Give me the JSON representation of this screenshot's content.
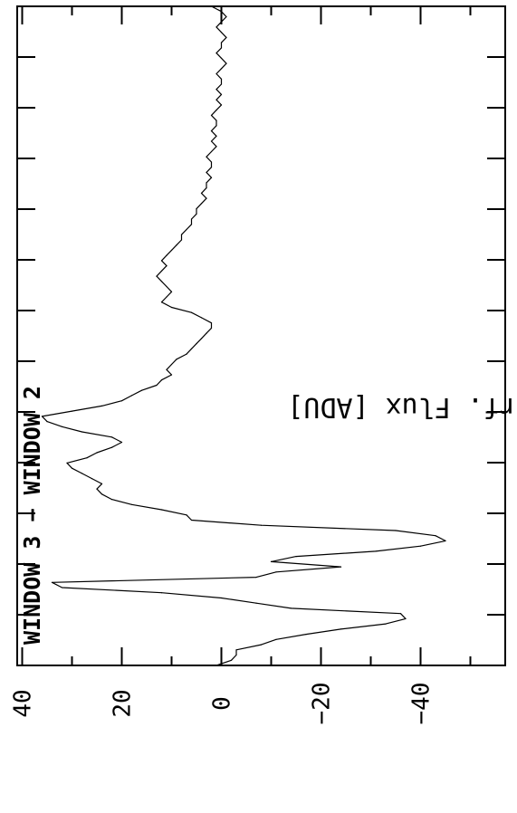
{
  "chart_data": {
    "type": "line",
    "orientation": "rotated-90-ccw",
    "title": "",
    "xlabel": "",
    "ylabel": "Mean Interf. Flux [ADU]",
    "ylim": [
      -57,
      41
    ],
    "yticks": [
      40,
      20,
      0,
      -20,
      -40
    ],
    "ytick_labels": [
      "40",
      "20",
      "0",
      "−20",
      "−40"
    ],
    "xlim": [
      0,
      127
    ],
    "xtick_count": 13,
    "grid": false,
    "annotation": "WINDOW 3 − WINDOW 2",
    "series": [
      {
        "x": [
          0,
          1,
          2,
          3,
          4,
          5,
          6,
          7,
          8,
          9,
          10,
          11,
          12,
          13,
          14,
          15,
          16,
          17,
          18,
          19,
          20,
          21,
          22,
          23,
          24,
          25,
          26,
          27,
          28,
          29,
          30,
          31,
          32,
          33,
          34,
          35,
          36,
          37,
          38,
          39,
          40,
          41,
          42,
          43,
          44,
          45,
          46,
          47,
          48,
          49,
          50,
          51,
          52,
          53,
          54,
          55,
          56,
          57,
          58,
          59,
          60,
          61,
          62,
          63,
          64,
          65,
          66,
          67,
          68,
          69,
          70,
          71,
          72,
          73,
          74,
          75,
          76,
          77,
          78,
          79,
          80,
          81,
          82,
          83,
          84,
          85,
          86,
          87,
          88,
          89,
          90,
          91,
          92,
          93,
          94,
          95,
          96,
          97,
          98,
          99,
          100,
          101,
          102,
          103,
          104,
          105,
          106,
          107,
          108,
          109,
          110,
          111,
          112,
          113,
          114,
          115,
          116,
          117,
          118,
          119,
          120,
          121,
          122,
          123,
          124,
          125,
          126,
          127
        ],
        "y": [
          1,
          -2,
          -3,
          -3,
          -8,
          -11,
          -17,
          -24,
          -33,
          -37,
          -36,
          -14,
          -7,
          0,
          12,
          32,
          34,
          -7,
          -11,
          -24,
          -10,
          -15,
          -31,
          -40,
          -45,
          -43,
          -35,
          -8,
          6,
          7,
          12,
          18,
          22,
          24,
          25,
          24,
          26,
          28,
          30,
          31,
          27,
          25,
          22,
          20,
          22,
          28,
          32,
          35,
          36,
          30,
          24,
          20,
          18,
          16,
          13,
          12,
          10,
          11,
          10,
          9,
          7,
          6,
          5,
          4,
          3,
          2,
          2,
          4,
          6,
          10,
          12,
          11,
          10,
          11,
          12,
          13,
          12,
          11,
          12,
          11,
          10,
          9,
          8,
          8,
          7,
          6,
          6,
          5,
          5,
          4,
          3,
          4,
          3,
          3,
          2,
          3,
          2,
          2,
          3,
          2,
          1,
          2,
          1,
          2,
          1,
          1,
          2,
          1,
          0,
          1,
          0,
          1,
          0,
          0,
          1,
          0,
          -1,
          0,
          1,
          0,
          0,
          -1,
          0,
          1,
          0,
          -1,
          0,
          2
        ]
      }
    ]
  }
}
